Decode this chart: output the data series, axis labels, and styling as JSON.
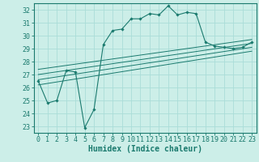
{
  "xlabel": "Humidex (Indice chaleur)",
  "bg_color": "#cceee8",
  "grid_color": "#aaddd8",
  "line_color": "#1a7a6e",
  "xlim": [
    -0.5,
    23.5
  ],
  "ylim": [
    22.5,
    32.5
  ],
  "yticks": [
    23,
    24,
    25,
    26,
    27,
    28,
    29,
    30,
    31,
    32
  ],
  "xticks": [
    0,
    1,
    2,
    3,
    4,
    5,
    6,
    7,
    8,
    9,
    10,
    11,
    12,
    13,
    14,
    15,
    16,
    17,
    18,
    19,
    20,
    21,
    22,
    23
  ],
  "main_line_x": [
    0,
    1,
    2,
    3,
    4,
    5,
    6,
    7,
    8,
    9,
    10,
    11,
    12,
    13,
    14,
    15,
    16,
    17,
    18,
    19,
    20,
    21,
    22,
    23
  ],
  "main_line_y": [
    26.5,
    24.8,
    25.0,
    27.3,
    27.2,
    22.9,
    24.3,
    29.3,
    30.4,
    30.5,
    31.3,
    31.3,
    31.7,
    31.6,
    32.3,
    31.6,
    31.8,
    31.7,
    29.5,
    29.2,
    29.1,
    29.0,
    29.1,
    29.5
  ],
  "trend_lines": [
    {
      "x": [
        0,
        23
      ],
      "y": [
        26.2,
        28.8
      ]
    },
    {
      "x": [
        0,
        23
      ],
      "y": [
        26.6,
        29.1
      ]
    },
    {
      "x": [
        0,
        23
      ],
      "y": [
        27.0,
        29.4
      ]
    },
    {
      "x": [
        0,
        23
      ],
      "y": [
        27.4,
        29.7
      ]
    }
  ],
  "axis_fontsize": 7,
  "tick_fontsize": 6
}
